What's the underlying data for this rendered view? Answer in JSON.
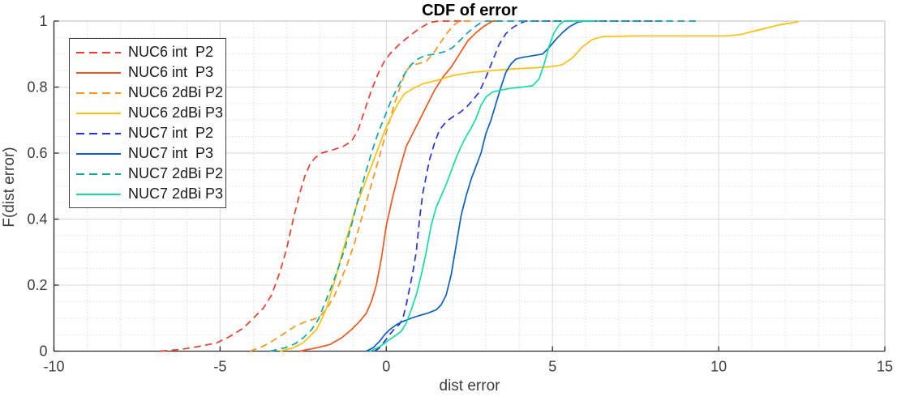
{
  "figure": {
    "title": "CDF of error",
    "xlabel": "dist error",
    "ylabel": "F(dist error)"
  },
  "chart_data": {
    "type": "line",
    "title": "CDF of error",
    "xlabel": "dist error",
    "ylabel": "F(dist error)",
    "xlim": [
      -10,
      15
    ],
    "ylim": [
      0,
      1
    ],
    "x_ticks": [
      -10,
      -5,
      0,
      5,
      10,
      15
    ],
    "x_tick_labels": [
      "-10",
      "-5",
      "0",
      "5",
      "10",
      "15"
    ],
    "y_ticks": [
      0,
      0.2,
      0.4,
      0.6,
      0.8,
      1
    ],
    "y_tick_labels": [
      "0",
      "0.2",
      "0.4",
      "0.6",
      "0.8",
      "1"
    ],
    "minor_x_step": 1,
    "minor_y_step": 0.05,
    "grid": true,
    "minor_grid": true,
    "legend_position": "top-left",
    "colors": {
      "grid_major": "#d9d9d9",
      "grid_minor": "#cfcfcf",
      "axis": "#2a2a2a",
      "box": "#bdbdbd",
      "tick_text": "#3d3d3d",
      "title_text": "#000000"
    },
    "series": [
      {
        "name": "NUC6 int  P2",
        "color": "#ee3b2a",
        "style": "dashed",
        "points": [
          [
            -6.8,
            0
          ],
          [
            -6.2,
            0.005
          ],
          [
            -5.6,
            0.015
          ],
          [
            -5.1,
            0.025
          ],
          [
            -4.7,
            0.045
          ],
          [
            -4.3,
            0.07
          ],
          [
            -4.0,
            0.1
          ],
          [
            -3.7,
            0.13
          ],
          [
            -3.45,
            0.17
          ],
          [
            -3.2,
            0.24
          ],
          [
            -3.0,
            0.31
          ],
          [
            -2.8,
            0.4
          ],
          [
            -2.6,
            0.48
          ],
          [
            -2.45,
            0.53
          ],
          [
            -2.3,
            0.565
          ],
          [
            -2.15,
            0.585
          ],
          [
            -1.95,
            0.6
          ],
          [
            -1.6,
            0.61
          ],
          [
            -1.3,
            0.62
          ],
          [
            -1.05,
            0.635
          ],
          [
            -0.85,
            0.67
          ],
          [
            -0.65,
            0.73
          ],
          [
            -0.45,
            0.79
          ],
          [
            -0.25,
            0.84
          ],
          [
            -0.05,
            0.88
          ],
          [
            0.15,
            0.905
          ],
          [
            0.4,
            0.93
          ],
          [
            0.7,
            0.955
          ],
          [
            1.0,
            0.978
          ],
          [
            1.3,
            0.995
          ],
          [
            1.55,
            1.0
          ],
          [
            2.3,
            1.0
          ]
        ]
      },
      {
        "name": "NUC6 int  P3",
        "color": "#f4551c",
        "style": "solid",
        "points": [
          [
            -2.6,
            0
          ],
          [
            -2.1,
            0.01
          ],
          [
            -1.7,
            0.02
          ],
          [
            -1.35,
            0.04
          ],
          [
            -1.05,
            0.065
          ],
          [
            -0.8,
            0.09
          ],
          [
            -0.6,
            0.115
          ],
          [
            -0.45,
            0.15
          ],
          [
            -0.3,
            0.2
          ],
          [
            -0.15,
            0.28
          ],
          [
            0.0,
            0.38
          ],
          [
            0.2,
            0.47
          ],
          [
            0.4,
            0.55
          ],
          [
            0.6,
            0.62
          ],
          [
            0.8,
            0.66
          ],
          [
            1.0,
            0.7
          ],
          [
            1.2,
            0.74
          ],
          [
            1.45,
            0.79
          ],
          [
            1.7,
            0.83
          ],
          [
            1.95,
            0.86
          ],
          [
            2.2,
            0.9
          ],
          [
            2.45,
            0.94
          ],
          [
            2.7,
            0.965
          ],
          [
            2.95,
            0.985
          ],
          [
            3.2,
            1.0
          ],
          [
            3.45,
            1.0
          ]
        ]
      },
      {
        "name": "NUC6 2dBi P2",
        "color": "#fb9318",
        "style": "dashed",
        "points": [
          [
            -4.1,
            0
          ],
          [
            -3.7,
            0.015
          ],
          [
            -3.35,
            0.035
          ],
          [
            -3.05,
            0.055
          ],
          [
            -2.75,
            0.075
          ],
          [
            -2.45,
            0.088
          ],
          [
            -2.15,
            0.098
          ],
          [
            -1.95,
            0.11
          ],
          [
            -1.75,
            0.135
          ],
          [
            -1.55,
            0.17
          ],
          [
            -1.35,
            0.22
          ],
          [
            -1.15,
            0.27
          ],
          [
            -0.95,
            0.33
          ],
          [
            -0.75,
            0.4
          ],
          [
            -0.55,
            0.47
          ],
          [
            -0.35,
            0.54
          ],
          [
            -0.15,
            0.61
          ],
          [
            0.05,
            0.68
          ],
          [
            0.25,
            0.75
          ],
          [
            0.45,
            0.81
          ],
          [
            0.6,
            0.85
          ],
          [
            0.75,
            0.865
          ],
          [
            1.0,
            0.872
          ],
          [
            1.2,
            0.878
          ],
          [
            1.4,
            0.9
          ],
          [
            1.6,
            0.93
          ],
          [
            1.8,
            0.96
          ],
          [
            2.0,
            0.985
          ],
          [
            2.2,
            1.0
          ],
          [
            2.6,
            1.0
          ]
        ]
      },
      {
        "name": "NUC6 2dBi P3",
        "color": "#fdc10c",
        "style": "solid",
        "points": [
          [
            -3.2,
            0
          ],
          [
            -2.8,
            0.01
          ],
          [
            -2.5,
            0.025
          ],
          [
            -2.3,
            0.045
          ],
          [
            -2.1,
            0.065
          ],
          [
            -1.95,
            0.095
          ],
          [
            -1.8,
            0.13
          ],
          [
            -1.65,
            0.18
          ],
          [
            -1.5,
            0.23
          ],
          [
            -1.35,
            0.29
          ],
          [
            -1.2,
            0.34
          ],
          [
            -1.05,
            0.39
          ],
          [
            -0.9,
            0.44
          ],
          [
            -0.75,
            0.48
          ],
          [
            -0.6,
            0.52
          ],
          [
            -0.45,
            0.56
          ],
          [
            -0.3,
            0.6
          ],
          [
            -0.15,
            0.64
          ],
          [
            0.0,
            0.68
          ],
          [
            0.15,
            0.71
          ],
          [
            0.35,
            0.75
          ],
          [
            0.55,
            0.78
          ],
          [
            0.8,
            0.795
          ],
          [
            1.1,
            0.81
          ],
          [
            1.5,
            0.82
          ],
          [
            2.0,
            0.835
          ],
          [
            2.6,
            0.845
          ],
          [
            3.2,
            0.85
          ],
          [
            3.8,
            0.855
          ],
          [
            4.4,
            0.858
          ],
          [
            5.0,
            0.862
          ],
          [
            5.3,
            0.868
          ],
          [
            5.6,
            0.888
          ],
          [
            5.9,
            0.922
          ],
          [
            6.2,
            0.944
          ],
          [
            6.5,
            0.953
          ],
          [
            7.5,
            0.955
          ],
          [
            9.0,
            0.955
          ],
          [
            10.3,
            0.955
          ],
          [
            10.7,
            0.96
          ],
          [
            11.0,
            0.968
          ],
          [
            11.4,
            0.978
          ],
          [
            11.8,
            0.988
          ],
          [
            12.1,
            0.993
          ],
          [
            12.4,
            0.998
          ]
        ]
      },
      {
        "name": "NUC7 int  P2",
        "color": "#2433e0",
        "style": "dashed",
        "points": [
          [
            -0.35,
            0
          ],
          [
            -0.2,
            0.01
          ],
          [
            -0.05,
            0.03
          ],
          [
            0.1,
            0.05
          ],
          [
            0.25,
            0.068
          ],
          [
            0.4,
            0.082
          ],
          [
            0.5,
            0.1
          ],
          [
            0.6,
            0.14
          ],
          [
            0.7,
            0.19
          ],
          [
            0.8,
            0.24
          ],
          [
            0.9,
            0.3
          ],
          [
            1.0,
            0.4
          ],
          [
            1.1,
            0.48
          ],
          [
            1.2,
            0.53
          ],
          [
            1.3,
            0.58
          ],
          [
            1.45,
            0.63
          ],
          [
            1.6,
            0.67
          ],
          [
            1.8,
            0.695
          ],
          [
            2.0,
            0.71
          ],
          [
            2.2,
            0.722
          ],
          [
            2.4,
            0.738
          ],
          [
            2.6,
            0.76
          ],
          [
            2.8,
            0.785
          ],
          [
            3.0,
            0.83
          ],
          [
            3.2,
            0.88
          ],
          [
            3.4,
            0.93
          ],
          [
            3.6,
            0.962
          ],
          [
            3.8,
            0.98
          ],
          [
            4.0,
            0.992
          ],
          [
            4.2,
            1.0
          ],
          [
            8.3,
            1.0
          ]
        ]
      },
      {
        "name": "NUC7 int  P3",
        "color": "#0a60c5",
        "style": "solid",
        "points": [
          [
            -0.6,
            0
          ],
          [
            -0.4,
            0.01
          ],
          [
            -0.2,
            0.03
          ],
          [
            -0.05,
            0.05
          ],
          [
            0.1,
            0.065
          ],
          [
            0.3,
            0.08
          ],
          [
            0.5,
            0.09
          ],
          [
            0.75,
            0.1
          ],
          [
            1.0,
            0.108
          ],
          [
            1.25,
            0.115
          ],
          [
            1.5,
            0.125
          ],
          [
            1.65,
            0.14
          ],
          [
            1.8,
            0.17
          ],
          [
            1.95,
            0.23
          ],
          [
            2.1,
            0.32
          ],
          [
            2.25,
            0.41
          ],
          [
            2.4,
            0.47
          ],
          [
            2.55,
            0.52
          ],
          [
            2.7,
            0.56
          ],
          [
            2.85,
            0.6
          ],
          [
            3.0,
            0.66
          ],
          [
            3.15,
            0.7
          ],
          [
            3.3,
            0.75
          ],
          [
            3.45,
            0.8
          ],
          [
            3.6,
            0.845
          ],
          [
            3.75,
            0.87
          ],
          [
            3.9,
            0.885
          ],
          [
            4.1,
            0.89
          ],
          [
            4.4,
            0.895
          ],
          [
            4.7,
            0.9
          ],
          [
            4.9,
            0.92
          ],
          [
            5.1,
            0.944
          ],
          [
            5.3,
            0.965
          ],
          [
            5.5,
            0.982
          ],
          [
            5.75,
            0.996
          ],
          [
            5.95,
            1.0
          ],
          [
            6.35,
            1.0
          ]
        ]
      },
      {
        "name": "NUC7 2dBi P2",
        "color": "#0ca8a2",
        "style": "dashed",
        "points": [
          [
            -3.5,
            0
          ],
          [
            -3.05,
            0.01
          ],
          [
            -2.75,
            0.022
          ],
          [
            -2.5,
            0.04
          ],
          [
            -2.25,
            0.065
          ],
          [
            -2.05,
            0.095
          ],
          [
            -1.85,
            0.145
          ],
          [
            -1.65,
            0.195
          ],
          [
            -1.45,
            0.25
          ],
          [
            -1.25,
            0.31
          ],
          [
            -1.05,
            0.38
          ],
          [
            -0.85,
            0.46
          ],
          [
            -0.65,
            0.53
          ],
          [
            -0.45,
            0.6
          ],
          [
            -0.25,
            0.66
          ],
          [
            -0.05,
            0.71
          ],
          [
            0.15,
            0.76
          ],
          [
            0.35,
            0.8
          ],
          [
            0.55,
            0.84
          ],
          [
            0.75,
            0.868
          ],
          [
            0.95,
            0.885
          ],
          [
            1.15,
            0.895
          ],
          [
            1.45,
            0.9
          ],
          [
            1.75,
            0.907
          ],
          [
            2.0,
            0.92
          ],
          [
            2.2,
            0.94
          ],
          [
            2.4,
            0.96
          ],
          [
            2.6,
            0.978
          ],
          [
            2.8,
            0.992
          ],
          [
            3.0,
            1.0
          ],
          [
            9.4,
            1.0
          ]
        ]
      },
      {
        "name": "NUC7 2dBi P3",
        "color": "#14dfa0",
        "style": "solid",
        "points": [
          [
            -0.5,
            0
          ],
          [
            -0.3,
            0.008
          ],
          [
            -0.1,
            0.02
          ],
          [
            0.05,
            0.032
          ],
          [
            0.25,
            0.045
          ],
          [
            0.45,
            0.06
          ],
          [
            0.6,
            0.085
          ],
          [
            0.75,
            0.125
          ],
          [
            0.9,
            0.17
          ],
          [
            1.05,
            0.23
          ],
          [
            1.2,
            0.3
          ],
          [
            1.35,
            0.38
          ],
          [
            1.5,
            0.435
          ],
          [
            1.65,
            0.47
          ],
          [
            1.8,
            0.505
          ],
          [
            1.95,
            0.545
          ],
          [
            2.1,
            0.585
          ],
          [
            2.25,
            0.62
          ],
          [
            2.4,
            0.65
          ],
          [
            2.55,
            0.675
          ],
          [
            2.7,
            0.705
          ],
          [
            2.85,
            0.745
          ],
          [
            3.0,
            0.77
          ],
          [
            3.2,
            0.785
          ],
          [
            3.5,
            0.792
          ],
          [
            3.8,
            0.797
          ],
          [
            4.1,
            0.8
          ],
          [
            4.4,
            0.804
          ],
          [
            4.6,
            0.825
          ],
          [
            4.75,
            0.87
          ],
          [
            4.9,
            0.925
          ],
          [
            5.05,
            0.965
          ],
          [
            5.2,
            0.988
          ],
          [
            5.35,
            1.0
          ],
          [
            6.3,
            1.0
          ]
        ]
      }
    ]
  }
}
